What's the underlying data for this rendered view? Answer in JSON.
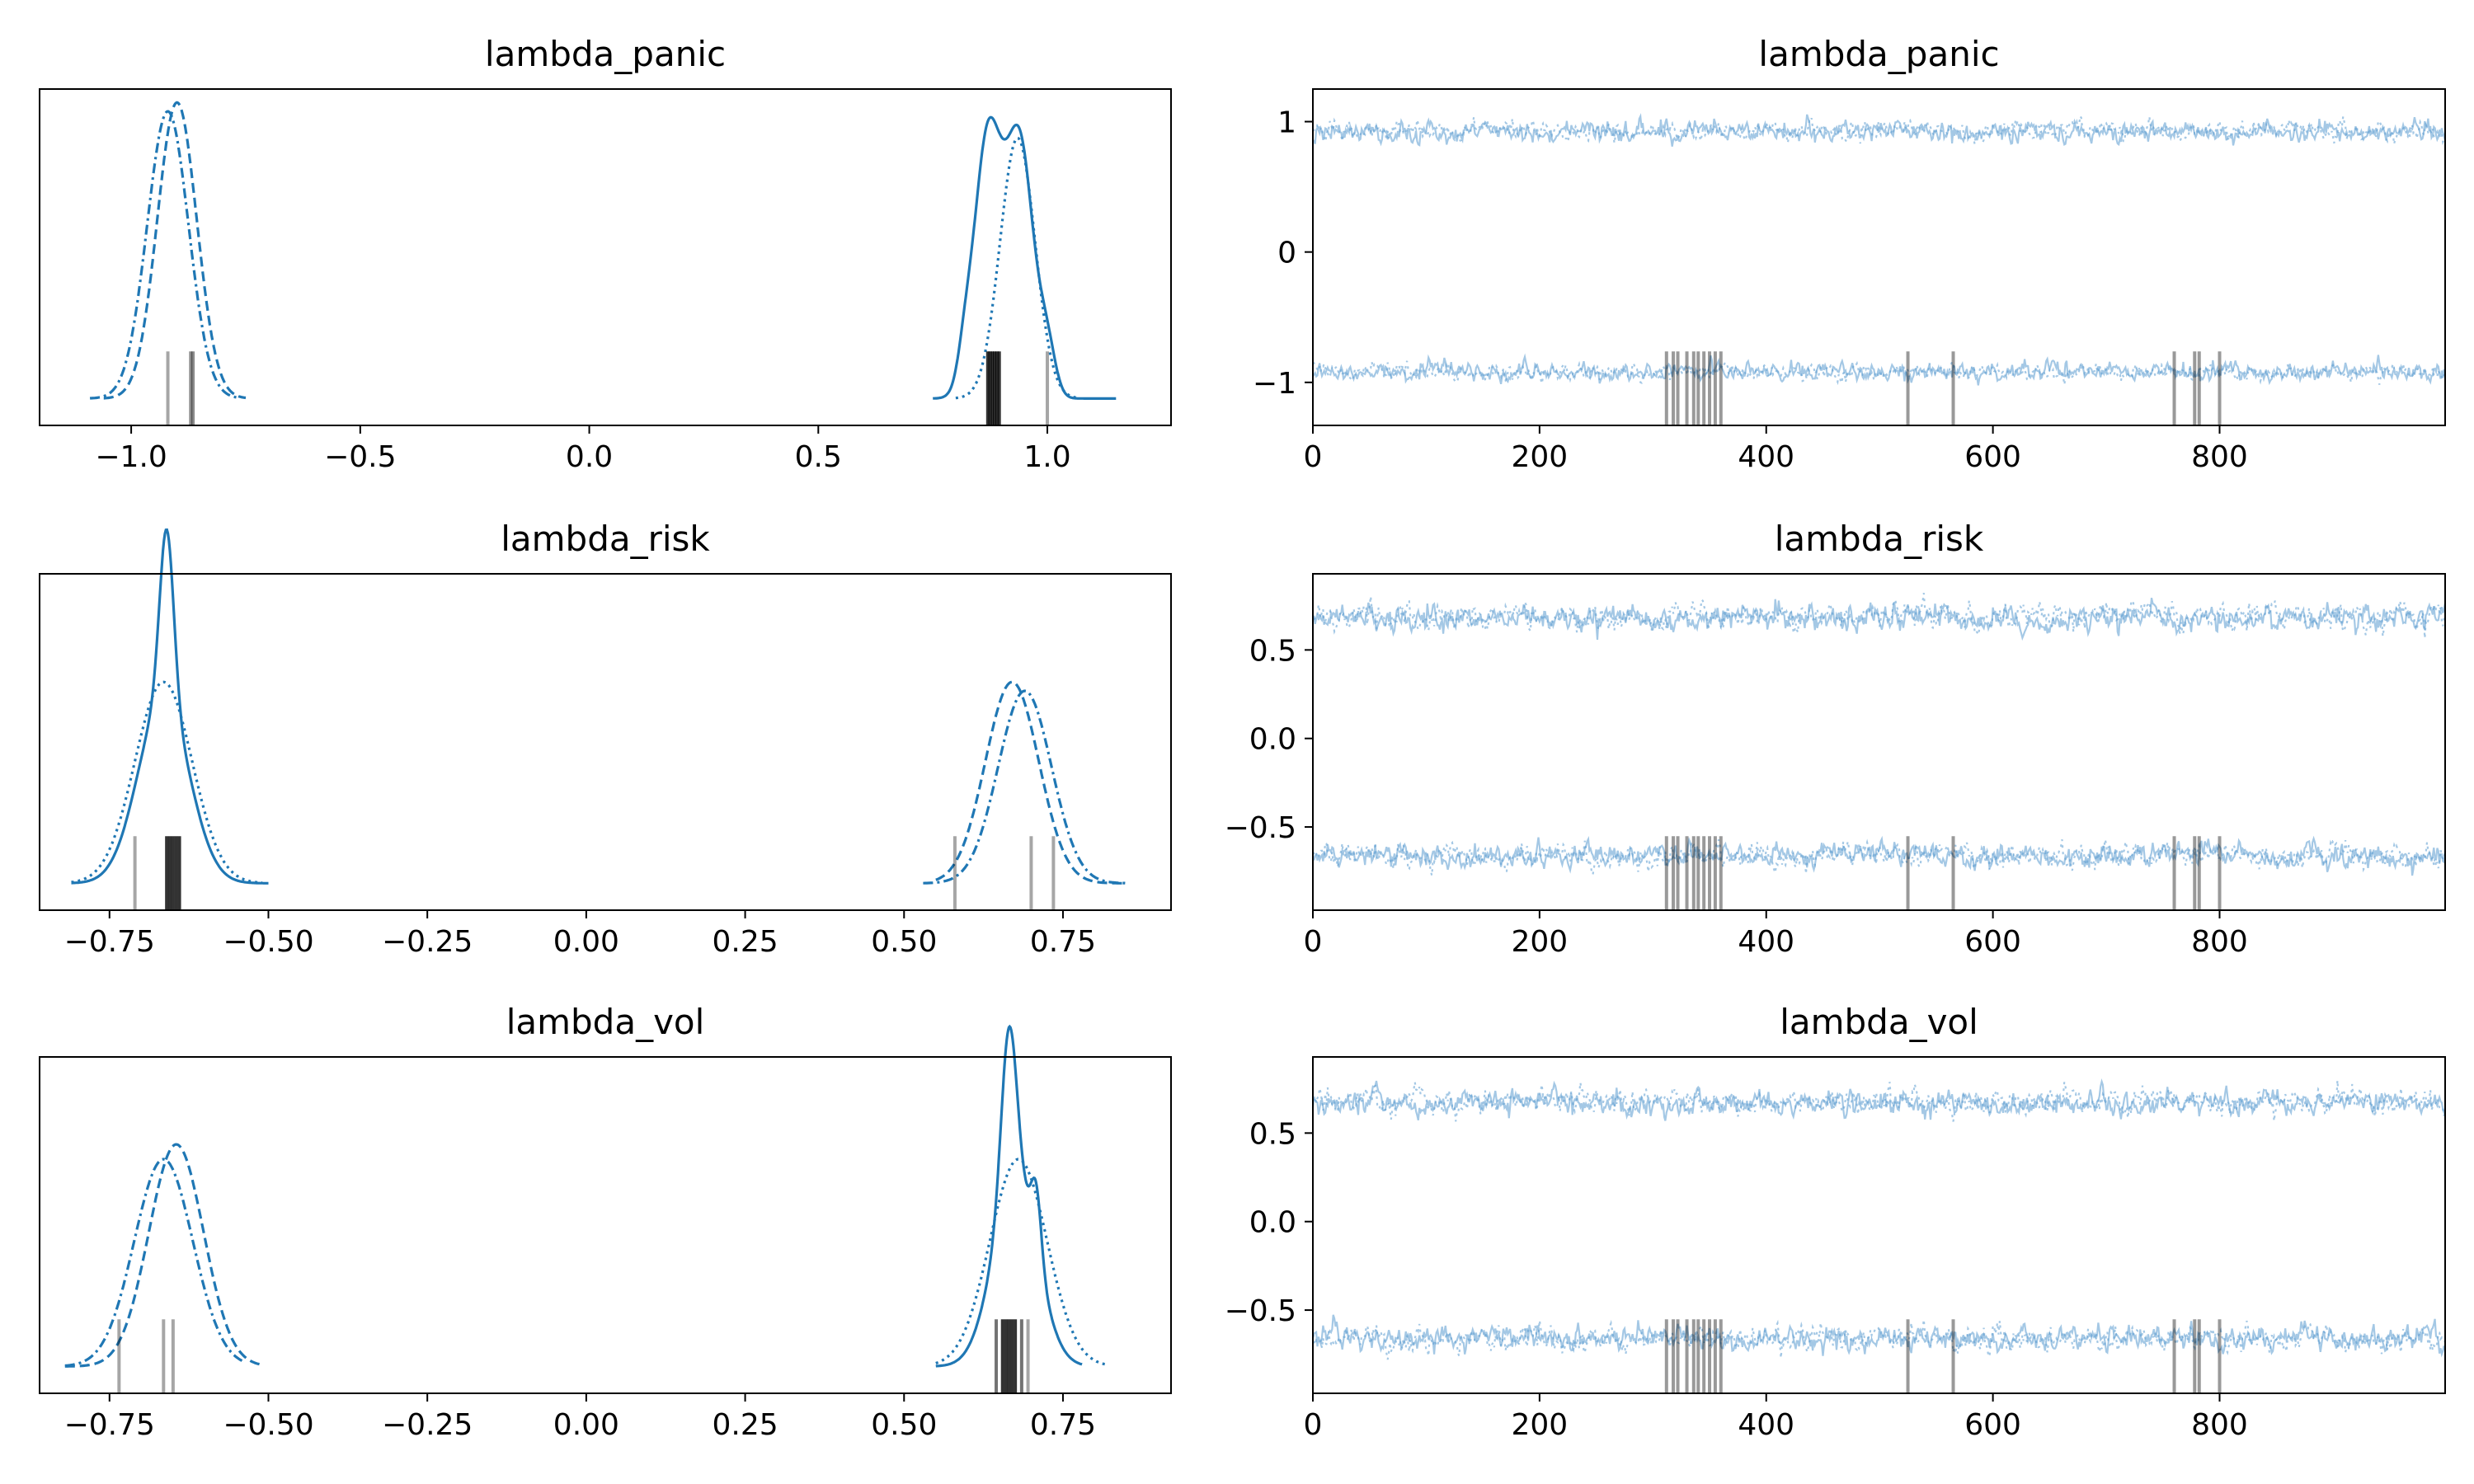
{
  "figure": {
    "background": "#ffffff",
    "line_color": "#1f77b4",
    "trace_color": "#5a9bd0",
    "rug_color": "#000000"
  },
  "chart_data": [
    {
      "type": "line",
      "kind": "density",
      "title": "lambda_panic",
      "xlim": [
        -1.2,
        1.27
      ],
      "xticks": [
        -1.0,
        -0.5,
        0.0,
        0.5,
        1.0
      ],
      "xtick_labels": [
        "−1.0",
        "−0.5",
        "0.0",
        "0.5",
        "1.0"
      ],
      "yticks": [],
      "grid": false,
      "series": [
        {
          "style": "solid",
          "modes": [
            {
              "xmin": 0.75,
              "xmax": 1.15,
              "comps": [
                [
                  0.87,
                  0.03,
                  0.88
                ],
                [
                  0.94,
                  0.03,
                  0.85
                ],
                [
                  0.82,
                  0.015,
                  0.1
                ],
                [
                  1.0,
                  0.018,
                  0.15
                ]
              ]
            }
          ]
        },
        {
          "style": "dotted",
          "modes": [
            {
              "xmin": 0.8,
              "xmax": 1.07,
              "comps": [
                [
                  0.935,
                  0.038,
                  0.88
                ]
              ]
            }
          ]
        },
        {
          "style": "dashed",
          "modes": [
            {
              "xmin": -1.06,
              "xmax": -0.75,
              "comps": [
                [
                  -0.9,
                  0.043,
                  1.0
                ]
              ]
            }
          ]
        },
        {
          "style": "dashdot",
          "modes": [
            {
              "xmin": -1.09,
              "xmax": -0.77,
              "comps": [
                [
                  -0.92,
                  0.045,
                  0.97
                ]
              ]
            }
          ]
        }
      ],
      "rug": [
        {
          "x": -0.92,
          "alpha": 0.35
        },
        {
          "x": -0.87,
          "alpha": 0.45
        },
        {
          "x": -0.865,
          "alpha": 0.45
        },
        {
          "x": 0.87,
          "alpha": 0.8
        },
        {
          "x": 0.875,
          "alpha": 0.8
        },
        {
          "x": 0.88,
          "alpha": 0.8
        },
        {
          "x": 0.885,
          "alpha": 0.8
        },
        {
          "x": 0.89,
          "alpha": 0.8
        },
        {
          "x": 0.895,
          "alpha": 0.8
        },
        {
          "x": 1.0,
          "alpha": 0.35
        }
      ]
    },
    {
      "type": "line",
      "kind": "trace",
      "title": "lambda_panic",
      "xlim": [
        0,
        999
      ],
      "ylim": [
        -1.33,
        1.25
      ],
      "xticks": [
        0,
        200,
        400,
        600,
        800
      ],
      "xtick_labels": [
        "0",
        "200",
        "400",
        "600",
        "800"
      ],
      "yticks": [
        -1,
        0,
        1
      ],
      "ytick_labels": [
        "−1",
        "0",
        "1"
      ],
      "grid": false,
      "n_draws": 1000,
      "series": [
        {
          "style": "solid",
          "mean": -0.92,
          "sd": 0.035
        },
        {
          "style": "dotted",
          "mean": -0.92,
          "sd": 0.03
        },
        {
          "style": "solid",
          "mean": 0.92,
          "sd": 0.04
        },
        {
          "style": "dotted",
          "mean": 0.93,
          "sd": 0.035
        }
      ],
      "divergences": [
        312,
        318,
        322,
        330,
        336,
        340,
        345,
        350,
        355,
        360,
        525,
        565,
        760,
        778,
        782,
        800
      ]
    },
    {
      "type": "line",
      "kind": "density",
      "title": "lambda_risk",
      "xlim": [
        -0.86,
        0.92
      ],
      "xticks": [
        -0.75,
        -0.5,
        -0.25,
        0.0,
        0.25,
        0.5,
        0.75
      ],
      "xtick_labels": [
        "−0.75",
        "−0.50",
        "−0.25",
        "0.00",
        "0.25",
        "0.50",
        "0.75"
      ],
      "yticks": [],
      "grid": false,
      "series": [
        {
          "style": "solid",
          "modes": [
            {
              "xmin": -0.81,
              "xmax": -0.5,
              "comps": [
                [
                  -0.66,
                  0.011,
                  0.58
                ],
                [
                  -0.665,
                  0.04,
                  0.62
                ]
              ]
            }
          ]
        },
        {
          "style": "dotted",
          "modes": [
            {
              "xmin": -0.81,
              "xmax": -0.51,
              "comps": [
                [
                  -0.665,
                  0.045,
                  0.68
                ]
              ]
            }
          ]
        },
        {
          "style": "dashed",
          "modes": [
            {
              "xmin": 0.55,
              "xmax": 0.85,
              "comps": [
                [
                  0.67,
                  0.042,
                  0.68
                ]
              ]
            }
          ]
        },
        {
          "style": "dashdot",
          "modes": [
            {
              "xmin": 0.53,
              "xmax": 0.85,
              "comps": [
                [
                  0.69,
                  0.042,
                  0.65
                ]
              ]
            }
          ]
        }
      ],
      "rug": [
        {
          "x": -0.71,
          "alpha": 0.35
        },
        {
          "x": -0.66,
          "alpha": 0.8
        },
        {
          "x": -0.655,
          "alpha": 0.8
        },
        {
          "x": -0.65,
          "alpha": 0.8
        },
        {
          "x": -0.645,
          "alpha": 0.8
        },
        {
          "x": -0.64,
          "alpha": 0.8
        },
        {
          "x": 0.58,
          "alpha": 0.35
        },
        {
          "x": 0.7,
          "alpha": 0.35
        },
        {
          "x": 0.735,
          "alpha": 0.35
        }
      ]
    },
    {
      "type": "line",
      "kind": "trace",
      "title": "lambda_risk",
      "xlim": [
        0,
        999
      ],
      "ylim": [
        -0.97,
        0.93
      ],
      "xticks": [
        0,
        200,
        400,
        600,
        800
      ],
      "xtick_labels": [
        "0",
        "200",
        "400",
        "600",
        "800"
      ],
      "yticks": [
        -0.5,
        0.0,
        0.5
      ],
      "ytick_labels": [
        "−0.5",
        "0.0",
        "0.5"
      ],
      "grid": false,
      "n_draws": 1000,
      "series": [
        {
          "style": "solid",
          "mean": -0.66,
          "sd": 0.035
        },
        {
          "style": "dotted",
          "mean": -0.66,
          "sd": 0.035
        },
        {
          "style": "solid",
          "mean": 0.68,
          "sd": 0.038
        },
        {
          "style": "dotted",
          "mean": 0.69,
          "sd": 0.038
        }
      ],
      "divergences": [
        312,
        318,
        322,
        330,
        336,
        340,
        345,
        350,
        355,
        360,
        525,
        565,
        760,
        778,
        782,
        800
      ]
    },
    {
      "type": "line",
      "kind": "density",
      "title": "lambda_vol",
      "xlim": [
        -0.86,
        0.92
      ],
      "xticks": [
        -0.75,
        -0.5,
        -0.25,
        0.0,
        0.25,
        0.5,
        0.75
      ],
      "xtick_labels": [
        "−0.75",
        "−0.50",
        "−0.25",
        "0.00",
        "0.25",
        "0.50",
        "0.75"
      ],
      "yticks": [],
      "grid": false,
      "series": [
        {
          "style": "solid",
          "modes": [
            {
              "xmin": 0.55,
              "xmax": 0.78,
              "comps": [
                [
                  0.665,
                  0.012,
                  0.55
                ],
                [
                  0.708,
                  0.008,
                  0.22
                ],
                [
                  0.675,
                  0.035,
                  0.62
                ]
              ]
            }
          ]
        },
        {
          "style": "dotted",
          "modes": [
            {
              "xmin": 0.55,
              "xmax": 0.82,
              "comps": [
                [
                  0.68,
                  0.045,
                  0.7
                ]
              ]
            }
          ]
        },
        {
          "style": "dashed",
          "modes": [
            {
              "xmin": -0.82,
              "xmax": -0.51,
              "comps": [
                [
                  -0.645,
                  0.043,
                  0.75
                ]
              ]
            }
          ]
        },
        {
          "style": "dashdot",
          "modes": [
            {
              "xmin": -0.82,
              "xmax": -0.54,
              "comps": [
                [
                  -0.665,
                  0.046,
                  0.7
                ]
              ]
            }
          ]
        }
      ],
      "rug": [
        {
          "x": -0.735,
          "alpha": 0.35
        },
        {
          "x": -0.665,
          "alpha": 0.35
        },
        {
          "x": -0.65,
          "alpha": 0.35
        },
        {
          "x": 0.645,
          "alpha": 0.55
        },
        {
          "x": 0.655,
          "alpha": 0.8
        },
        {
          "x": 0.66,
          "alpha": 0.8
        },
        {
          "x": 0.665,
          "alpha": 0.8
        },
        {
          "x": 0.67,
          "alpha": 0.8
        },
        {
          "x": 0.675,
          "alpha": 0.8
        },
        {
          "x": 0.685,
          "alpha": 0.55
        },
        {
          "x": 0.695,
          "alpha": 0.35
        }
      ]
    },
    {
      "type": "line",
      "kind": "trace",
      "title": "lambda_vol",
      "xlim": [
        0,
        999
      ],
      "ylim": [
        -0.97,
        0.93
      ],
      "xticks": [
        0,
        200,
        400,
        600,
        800
      ],
      "xtick_labels": [
        "0",
        "200",
        "400",
        "600",
        "800"
      ],
      "yticks": [
        -0.5,
        0.0,
        0.5
      ],
      "ytick_labels": [
        "−0.5",
        "0.0",
        "0.5"
      ],
      "grid": false,
      "n_draws": 1000,
      "series": [
        {
          "style": "solid",
          "mean": -0.66,
          "sd": 0.035
        },
        {
          "style": "dotted",
          "mean": -0.66,
          "sd": 0.035
        },
        {
          "style": "solid",
          "mean": 0.67,
          "sd": 0.035
        },
        {
          "style": "dotted",
          "mean": 0.68,
          "sd": 0.035
        }
      ],
      "divergences": [
        312,
        318,
        322,
        330,
        336,
        340,
        345,
        350,
        355,
        360,
        525,
        565,
        760,
        778,
        782,
        800
      ]
    }
  ]
}
